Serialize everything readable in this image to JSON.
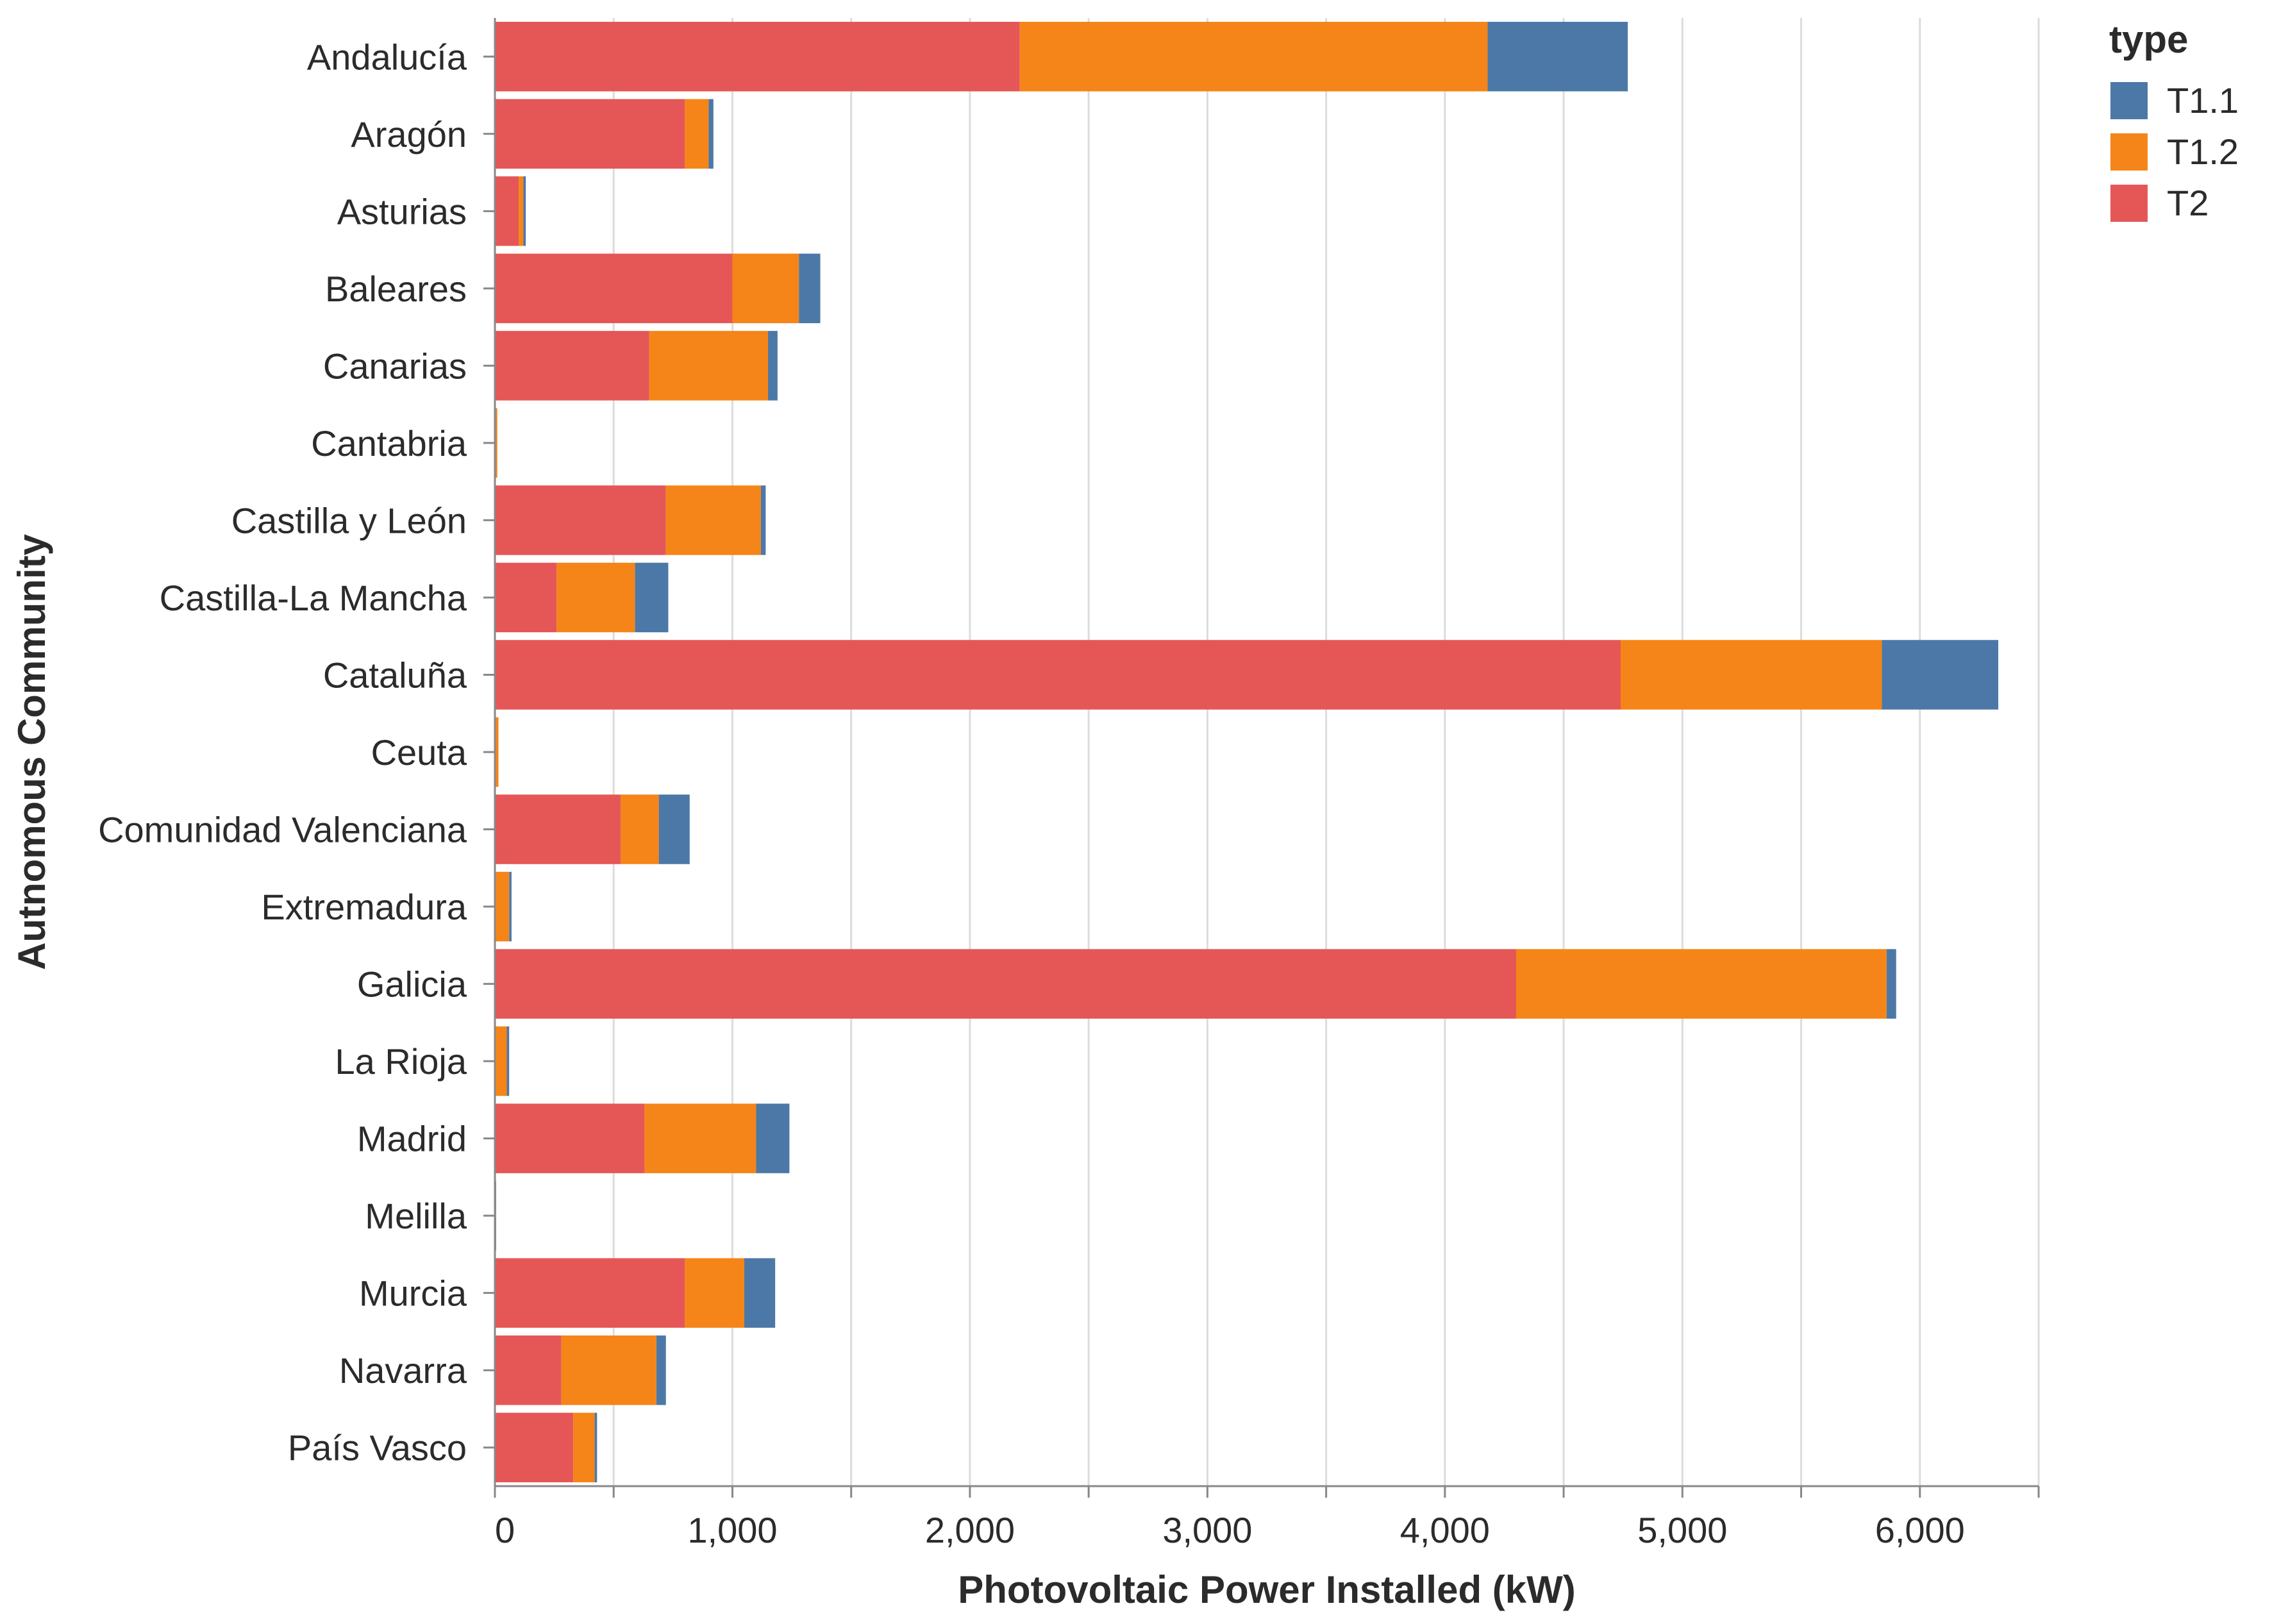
{
  "chart_data": {
    "type": "bar",
    "orientation": "horizontal",
    "stacked": true,
    "categories": [
      "Andalucía",
      "Aragón",
      "Asturias",
      "Baleares",
      "Canarias",
      "Cantabria",
      "Castilla y León",
      "Castilla-La Mancha",
      "Cataluña",
      "Ceuta",
      "Comunidad Valenciana",
      "Extremadura",
      "Galicia",
      "La Rioja",
      "Madrid",
      "Melilla",
      "Murcia",
      "Navarra",
      "País Vasco"
    ],
    "series": [
      {
        "name": "T2",
        "color": "#e45756",
        "values": [
          2210,
          800,
          100,
          1000,
          650,
          0,
          720,
          260,
          4740,
          0,
          530,
          0,
          4300,
          0,
          630,
          0,
          800,
          280,
          330
        ]
      },
      {
        "name": "T1.2",
        "color": "#f58518",
        "values": [
          1970,
          100,
          20,
          280,
          500,
          10,
          400,
          330,
          1100,
          15,
          160,
          60,
          1560,
          50,
          470,
          0,
          250,
          400,
          90
        ]
      },
      {
        "name": "T1.1",
        "color": "#4c78a8",
        "values": [
          590,
          20,
          10,
          90,
          40,
          0,
          20,
          140,
          490,
          0,
          130,
          10,
          40,
          10,
          140,
          5,
          130,
          40,
          10
        ]
      }
    ],
    "xlabel": "Photovoltaic Power Installed (kW)",
    "ylabel": "Autnomous Community",
    "xlim": [
      0,
      6500
    ],
    "xticks": [
      0,
      1000,
      2000,
      3000,
      4000,
      5000,
      6000
    ],
    "xtick_labels": [
      "0",
      "1,000",
      "2,000",
      "3,000",
      "4,000",
      "5,000",
      "6,000"
    ],
    "grid": true,
    "legend": {
      "title": "type",
      "position": "top-right",
      "entries": [
        {
          "label": "T1.1",
          "color": "#4c78a8"
        },
        {
          "label": "T1.2",
          "color": "#f58518"
        },
        {
          "label": "T2",
          "color": "#e45756"
        }
      ]
    }
  }
}
